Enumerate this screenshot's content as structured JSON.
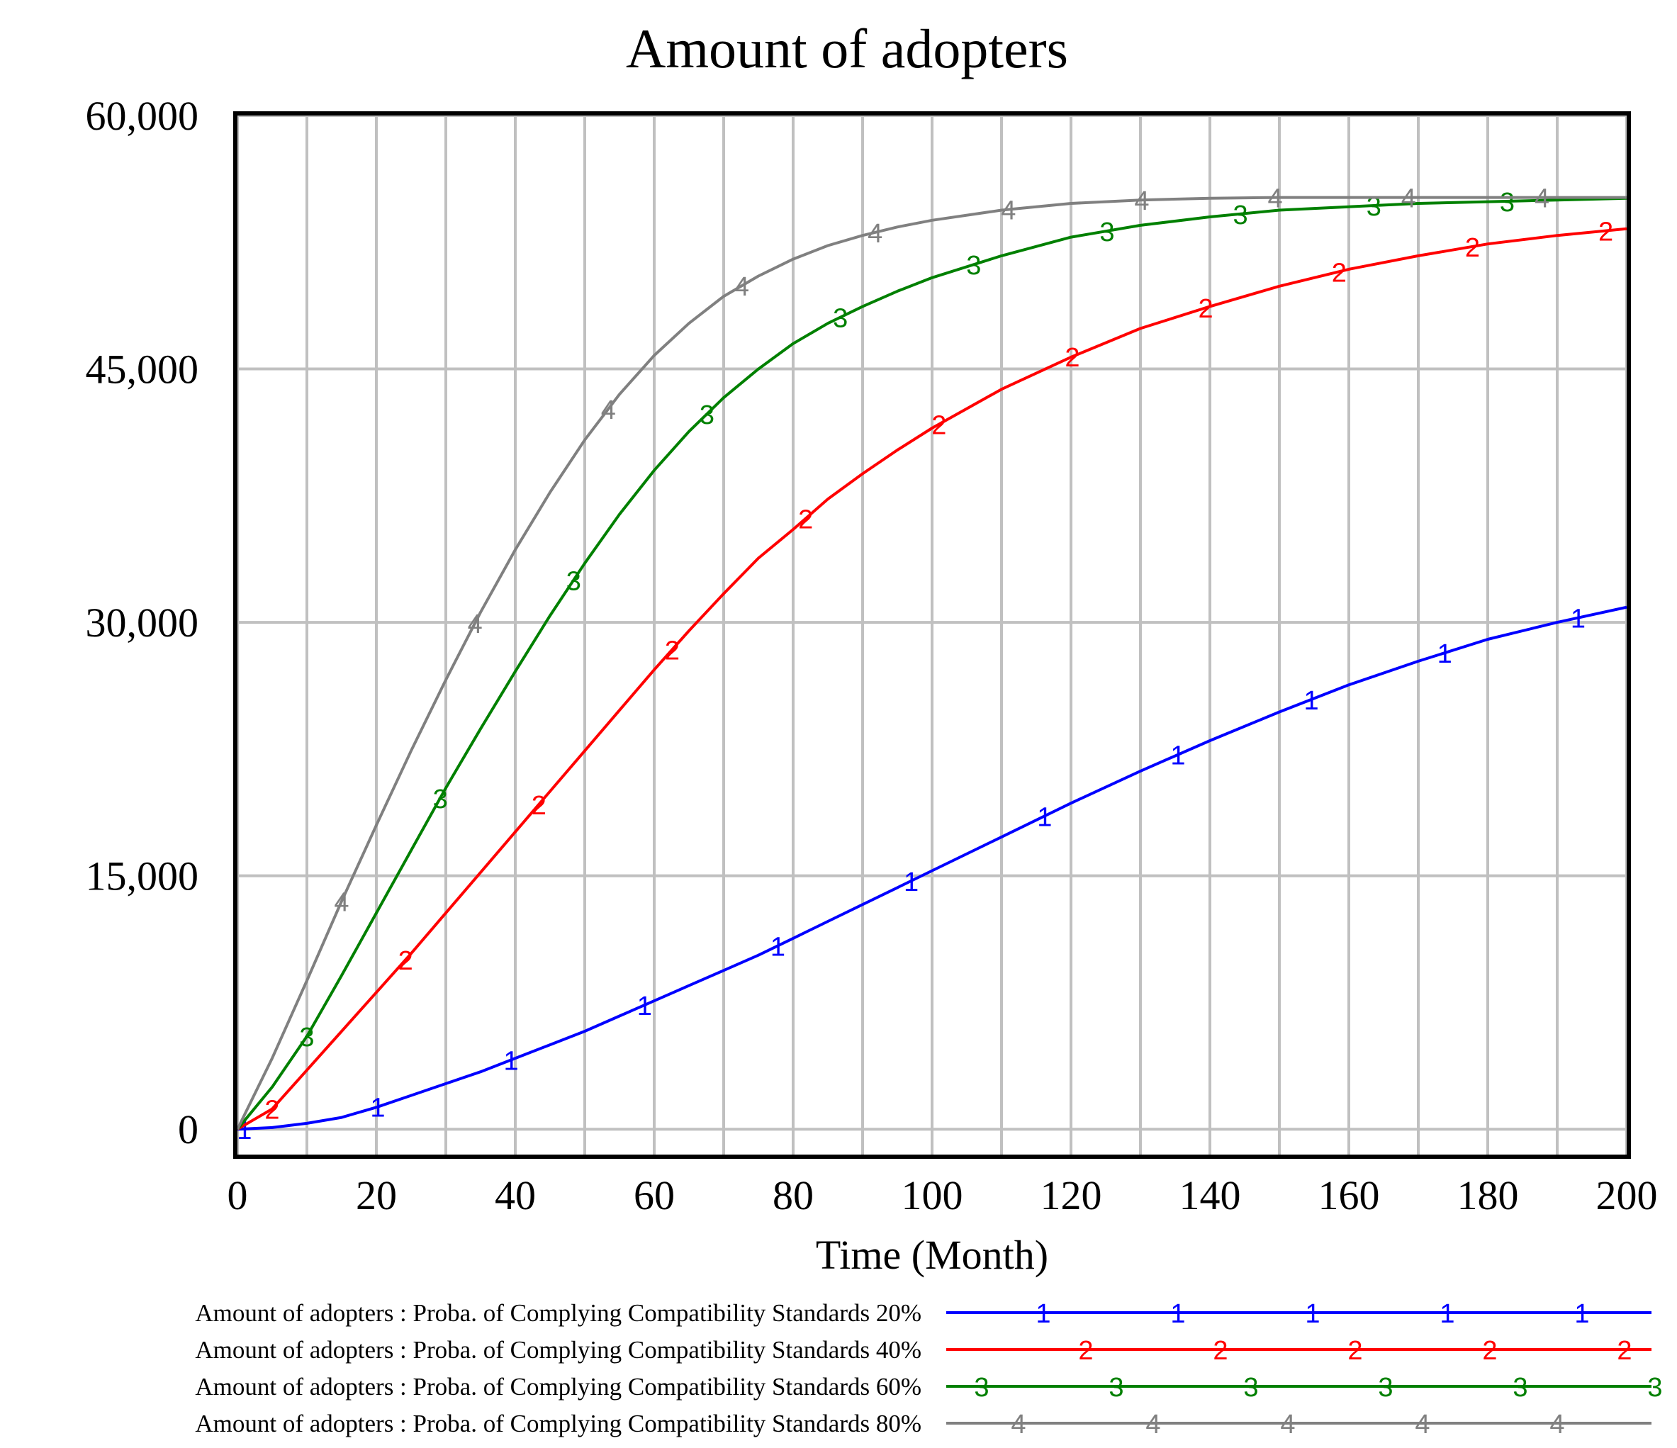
{
  "chart_data": {
    "type": "line",
    "title": "Amount of adopters",
    "xlabel": "Time (Month)",
    "ylabel": "",
    "xlim": [
      0,
      200
    ],
    "ylim": [
      -1500,
      60000
    ],
    "x_ticks": [
      0,
      20,
      40,
      60,
      80,
      100,
      120,
      140,
      160,
      180,
      200
    ],
    "x_tick_labels": [
      "0",
      "20",
      "40",
      "60",
      "80",
      "100",
      "120",
      "140",
      "160",
      "180",
      "200"
    ],
    "y_ticks": [
      0,
      15000,
      30000,
      45000,
      60000
    ],
    "y_tick_labels": [
      "0",
      "15,000",
      "30,000",
      "45,000",
      "60,000"
    ],
    "x_gridlines": [
      0,
      10,
      20,
      30,
      40,
      50,
      60,
      70,
      80,
      90,
      100,
      110,
      120,
      130,
      140,
      150,
      160,
      170,
      180,
      190,
      200
    ],
    "grid": true,
    "legend_position": "bottom",
    "x": [
      0,
      5,
      10,
      15,
      20,
      25,
      30,
      35,
      40,
      45,
      50,
      55,
      60,
      65,
      70,
      75,
      80,
      85,
      90,
      95,
      100,
      110,
      120,
      130,
      140,
      150,
      160,
      170,
      180,
      190,
      200
    ],
    "series": [
      {
        "name": "Amount of adopters : Proba. of Complying Compatibility Standards 20%",
        "marker": "1",
        "color": "#0000ff",
        "values": [
          0,
          100,
          350,
          700,
          1300,
          2000,
          2700,
          3400,
          4200,
          5000,
          5800,
          6700,
          7600,
          8500,
          9400,
          10300,
          11300,
          12300,
          13300,
          14300,
          15300,
          17300,
          19300,
          21200,
          23000,
          24700,
          26300,
          27700,
          29000,
          30000,
          30900
        ]
      },
      {
        "name": "Amount of adopters : Proba. of Complying Compatibility Standards 40%",
        "marker": "2",
        "color": "#ff0000",
        "values": [
          0,
          1200,
          3500,
          5800,
          8100,
          10400,
          12800,
          15200,
          17600,
          20000,
          22400,
          24800,
          27200,
          29500,
          31700,
          33800,
          35500,
          37300,
          38800,
          40200,
          41500,
          43800,
          45700,
          47400,
          48700,
          49900,
          50900,
          51700,
          52400,
          52900,
          53300
        ]
      },
      {
        "name": "Amount of adopters : Proba. of Complying Compatibility Standards 60%",
        "marker": "3",
        "color": "#008000",
        "values": [
          0,
          2500,
          5500,
          9100,
          12800,
          16500,
          20200,
          23700,
          27100,
          30400,
          33500,
          36400,
          39000,
          41300,
          43300,
          45000,
          46500,
          47700,
          48700,
          49600,
          50400,
          51700,
          52800,
          53500,
          54000,
          54400,
          54600,
          54800,
          54900,
          55000,
          55100
        ]
      },
      {
        "name": "Amount of adopters : Proba. of Complying Compatibility Standards 80%",
        "marker": "4",
        "color": "#808080",
        "values": [
          0,
          4200,
          8800,
          13500,
          18000,
          22400,
          26600,
          30600,
          34300,
          37700,
          40800,
          43500,
          45800,
          47700,
          49300,
          50500,
          51500,
          52300,
          52900,
          53400,
          53800,
          54400,
          54800,
          55000,
          55100,
          55150,
          55150,
          55150,
          55150,
          55150,
          55150
        ]
      }
    ]
  }
}
